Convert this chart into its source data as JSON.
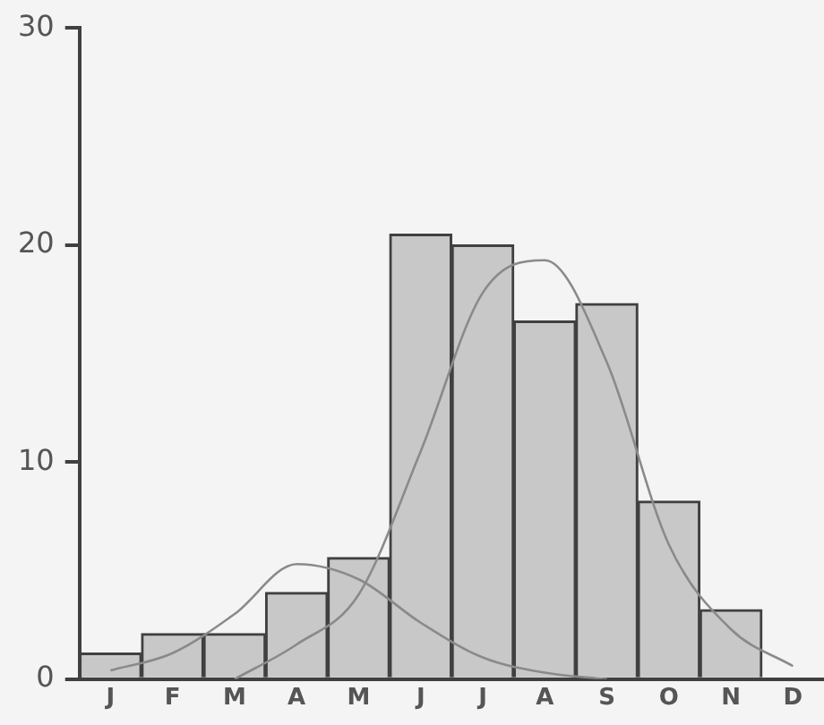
{
  "chart_data": {
    "type": "bar",
    "categories": [
      "J",
      "F",
      "M",
      "A",
      "M",
      "J",
      "J",
      "A",
      "S",
      "O",
      "N",
      "D"
    ],
    "series": [
      {
        "color": "#c8c8c8",
        "values": [
          1.2,
          2.1,
          2.1,
          4.0,
          5.6,
          20.5,
          20.0,
          16.5,
          17.3,
          8.2,
          3.2,
          null
        ]
      },
      {
        "type": "line",
        "color": "#8a8a8a",
        "values": [
          0.4,
          1.2,
          3.0,
          5.3,
          4.6,
          2.6,
          1.0,
          0.3,
          0,
          null,
          null,
          null
        ]
      },
      {
        "type": "line",
        "color": "#8a8a8a",
        "values": [
          null,
          null,
          0,
          1.6,
          3.9,
          10.5,
          17.8,
          19.3,
          14.6,
          6.2,
          2.3,
          0.6
        ]
      }
    ],
    "ylim": [
      0,
      30
    ],
    "yticks": [
      0,
      10,
      20,
      30
    ],
    "grid": false,
    "legend": false,
    "marker": "none"
  }
}
